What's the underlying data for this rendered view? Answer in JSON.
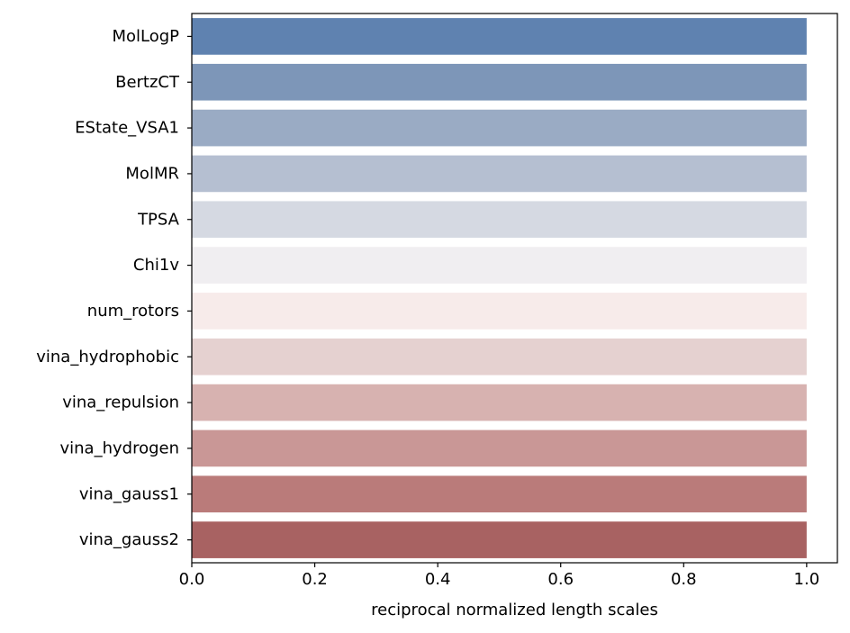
{
  "chart_data": {
    "type": "bar",
    "orientation": "horizontal",
    "title": "",
    "xlabel": "reciprocal normalized length scales",
    "ylabel": "",
    "xlim": [
      0.0,
      1.05
    ],
    "xticks": [
      0.0,
      0.2,
      0.4,
      0.6,
      0.8,
      1.0
    ],
    "xtick_labels": [
      "0.0",
      "0.2",
      "0.4",
      "0.6",
      "0.8",
      "1.0"
    ],
    "grid": false,
    "categories": [
      "MolLogP",
      "BertzCT",
      "EState_VSA1",
      "MolMR",
      "TPSA",
      "Chi1v",
      "num_rotors",
      "vina_hydrophobic",
      "vina_repulsion",
      "vina_hydrogen",
      "vina_gauss1",
      "vina_gauss2"
    ],
    "values": [
      1.0,
      1.0,
      1.0,
      1.0,
      1.0,
      1.0,
      1.0,
      1.0,
      1.0,
      1.0,
      1.0,
      1.0
    ],
    "colors": [
      "#5f82b0",
      "#7d96b8",
      "#9aabc4",
      "#b5bfd1",
      "#d5d9e2",
      "#f0eef1",
      "#f7ebea",
      "#e5d1d0",
      "#d7b2b0",
      "#c99796",
      "#ba7b7a",
      "#a86262"
    ]
  }
}
